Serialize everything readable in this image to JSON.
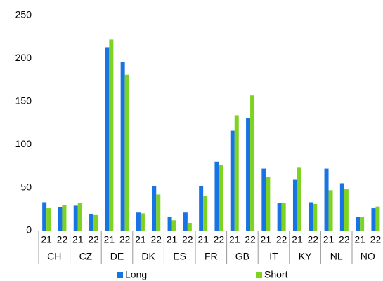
{
  "chart_data": {
    "type": "bar",
    "groups": [
      "CH",
      "CZ",
      "DE",
      "DK",
      "ES",
      "FR",
      "GB",
      "IT",
      "KY",
      "NL",
      "NO"
    ],
    "categories": [
      "21",
      "22",
      "21",
      "22",
      "21",
      "22",
      "21",
      "22",
      "21",
      "22",
      "21",
      "22",
      "21",
      "22",
      "21",
      "22",
      "21",
      "22",
      "21",
      "22",
      "21",
      "22"
    ],
    "series": [
      {
        "name": "Long",
        "color": "#1874e3",
        "values": [
          33,
          27,
          29,
          19,
          213,
          196,
          21,
          52,
          16,
          21,
          52,
          80,
          116,
          131,
          72,
          32,
          59,
          33,
          72,
          55,
          16,
          26
        ]
      },
      {
        "name": "Short",
        "color": "#7ed321",
        "values": [
          26,
          30,
          32,
          18,
          222,
          181,
          20,
          42,
          12,
          9,
          40,
          76,
          134,
          157,
          62,
          32,
          73,
          31,
          47,
          48,
          16,
          28
        ]
      }
    ],
    "ylim": [
      0,
      250
    ],
    "yticks": [
      0,
      50,
      100,
      150,
      200,
      250
    ],
    "grid": false,
    "legend": "bottom"
  }
}
